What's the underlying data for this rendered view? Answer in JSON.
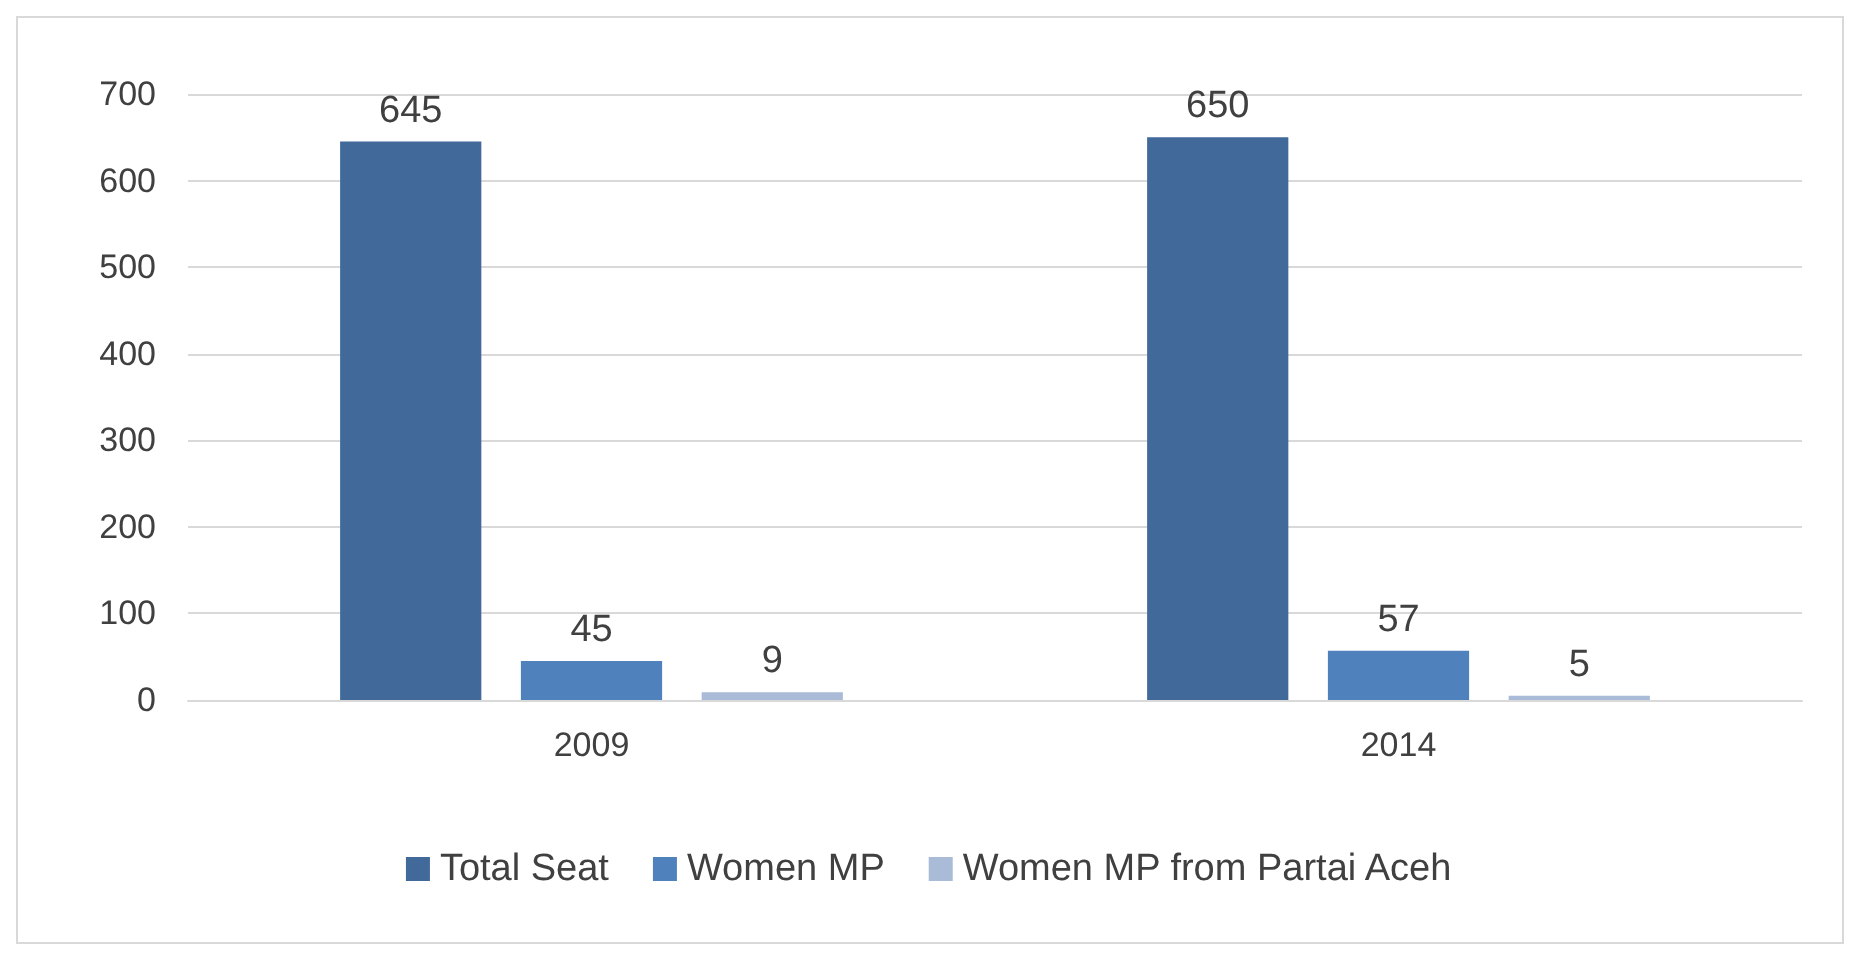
{
  "chart_data": {
    "type": "bar",
    "categories": [
      "2009",
      "2014"
    ],
    "series": [
      {
        "name": "Total Seat",
        "color": "#41699a",
        "values": [
          645,
          650
        ]
      },
      {
        "name": "Women MP",
        "color": "#4f81bd",
        "values": [
          45,
          57
        ]
      },
      {
        "name": "Women MP from Partai Aceh",
        "color": "#a9bbd7",
        "values": [
          9,
          5
        ]
      }
    ],
    "ylim": [
      0,
      700
    ],
    "yticks": [
      0,
      100,
      200,
      300,
      400,
      500,
      600,
      700
    ],
    "grid": "y",
    "legend": "bottom",
    "data_labels": true
  }
}
